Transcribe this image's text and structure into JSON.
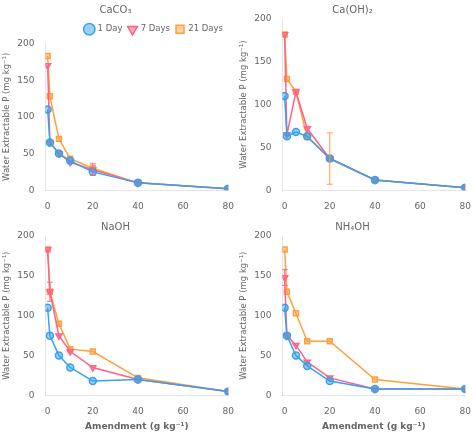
{
  "chart_data": [
    {
      "type": "line",
      "title": "CaCO₃",
      "legend": "upper right",
      "grid": false,
      "x": [
        0,
        1,
        5,
        10,
        20,
        40,
        80
      ],
      "series": [
        {
          "name": "1 Day",
          "marker": "circle",
          "values": [
            110,
            65,
            50,
            40,
            25,
            10,
            2
          ],
          "yerr": [
            null,
            null,
            null,
            null,
            null,
            null,
            null
          ]
        },
        {
          "name": "7 Days",
          "marker": "triangle-down",
          "values": [
            170,
            65,
            50,
            38,
            28,
            10,
            2
          ],
          "yerr": [
            null,
            null,
            null,
            null,
            8,
            null,
            null
          ]
        },
        {
          "name": "21 Days",
          "marker": "square",
          "values": [
            183,
            128,
            70,
            43,
            30,
            10,
            2
          ],
          "yerr": [
            null,
            null,
            null,
            null,
            null,
            null,
            null
          ]
        }
      ],
      "ylabel": "Water Extractable P (mg kg⁻¹)",
      "xlim": [
        -1,
        80
      ],
      "xticks": [
        0,
        20,
        40,
        60,
        80
      ],
      "ylim": [
        0,
        200
      ],
      "yticks": [
        0,
        50,
        100,
        150,
        200
      ]
    },
    {
      "type": "line",
      "title": "Ca(OH)₂",
      "grid": false,
      "x": [
        0,
        1,
        5,
        10,
        20,
        40,
        80
      ],
      "series": [
        {
          "name": "1 Day",
          "marker": "circle",
          "values": [
            110,
            63,
            68,
            63,
            37,
            12,
            3
          ],
          "yerr": [
            null,
            null,
            null,
            null,
            null,
            null,
            null
          ]
        },
        {
          "name": "7 Days",
          "marker": "triangle-down",
          "values": [
            182,
            65,
            115,
            72,
            37,
            12,
            3
          ],
          "yerr": [
            null,
            null,
            null,
            null,
            null,
            null,
            null
          ]
        },
        {
          "name": "21 Days",
          "marker": "square",
          "values": [
            182,
            130,
            115,
            62,
            37,
            12,
            3
          ],
          "yerr": [
            null,
            null,
            null,
            null,
            30,
            null,
            null
          ]
        }
      ],
      "ylabel": "Water Extractable P (mg kg⁻¹)",
      "xlim": [
        -1,
        80
      ],
      "xticks": [
        0,
        20,
        40,
        60,
        80
      ],
      "ylim": [
        0,
        200
      ],
      "yticks": [
        0,
        50,
        100,
        150,
        200
      ]
    },
    {
      "type": "line",
      "title": "NaOH",
      "grid": false,
      "x": [
        0,
        1,
        5,
        10,
        20,
        40,
        80
      ],
      "series": [
        {
          "name": "1 Day",
          "marker": "circle",
          "values": [
            110,
            75,
            50,
            35,
            18,
            20,
            5
          ],
          "yerr": [
            null,
            null,
            null,
            null,
            null,
            null,
            null
          ]
        },
        {
          "name": "7 Days",
          "marker": "triangle-down",
          "values": [
            183,
            130,
            75,
            55,
            35,
            20,
            5
          ],
          "yerr": [
            null,
            12,
            null,
            null,
            null,
            null,
            null
          ]
        },
        {
          "name": "21 Days",
          "marker": "square",
          "values": [
            183,
            130,
            90,
            58,
            55,
            22,
            5
          ],
          "yerr": [
            null,
            null,
            null,
            null,
            null,
            null,
            null
          ]
        }
      ],
      "xlabel": "Amendment (g kg⁻¹)",
      "ylabel": "Water Extractable P (mg kg⁻¹)",
      "xlim": [
        -1,
        80
      ],
      "xticks": [
        0,
        20,
        40,
        60,
        80
      ],
      "ylim": [
        0,
        200
      ],
      "yticks": [
        0,
        50,
        100,
        150,
        200
      ]
    },
    {
      "type": "line",
      "title": "NH₄OH",
      "grid": false,
      "x": [
        0,
        1,
        5,
        10,
        20,
        40,
        80
      ],
      "series": [
        {
          "name": "1 Day",
          "marker": "circle",
          "values": [
            110,
            75,
            50,
            37,
            18,
            8,
            8
          ],
          "yerr": [
            null,
            null,
            null,
            null,
            null,
            null,
            null
          ]
        },
        {
          "name": "7 Days",
          "marker": "triangle-down",
          "values": [
            148,
            75,
            63,
            42,
            22,
            8,
            8
          ],
          "yerr": [
            10,
            null,
            null,
            null,
            null,
            null,
            null
          ]
        },
        {
          "name": "21 Days",
          "marker": "square",
          "values": [
            183,
            130,
            103,
            68,
            68,
            20,
            8
          ],
          "yerr": [
            null,
            null,
            null,
            null,
            null,
            null,
            null
          ]
        }
      ],
      "xlabel": "Amendment (g kg⁻¹)",
      "ylabel": "Water Extractable P (mg kg⁻¹)",
      "xlim": [
        -1,
        80
      ],
      "xticks": [
        0,
        20,
        40,
        60,
        80
      ],
      "ylim": [
        0,
        200
      ],
      "yticks": [
        0,
        50,
        100,
        150,
        200
      ]
    }
  ]
}
